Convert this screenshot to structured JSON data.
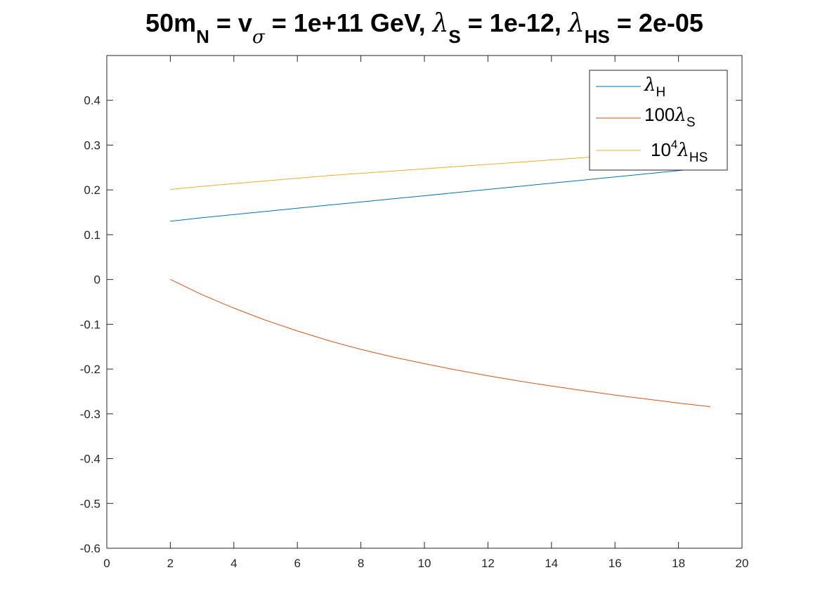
{
  "chart_data": {
    "type": "line",
    "title": {
      "p1": "50m",
      "p1_sub": "N",
      "p2": " = v",
      "p2_sub": "σ",
      "p3": " = 1e+11 GeV, ",
      "p4_greek": "λ",
      "p4_sub": "S",
      "p5": " = 1e-12, ",
      "p6_greek": "λ",
      "p6_sub": "HS",
      "p7": " = 2e-05"
    },
    "xlim": [
      0,
      20
    ],
    "ylim": [
      -0.6,
      0.5
    ],
    "xticks": [
      0,
      2,
      4,
      6,
      8,
      10,
      12,
      14,
      16,
      18,
      20
    ],
    "yticks": [
      -0.6,
      -0.5,
      -0.4,
      -0.3,
      -0.2,
      -0.1,
      0,
      0.1,
      0.2,
      0.3,
      0.4
    ],
    "xtick_labels": [
      "0",
      "2",
      "4",
      "6",
      "8",
      "10",
      "12",
      "14",
      "16",
      "18",
      "20"
    ],
    "ytick_labels": [
      "-0.6",
      "-0.5",
      "-0.4",
      "-0.3",
      "-0.2",
      "-0.1",
      "0",
      "0.1",
      "0.2",
      "0.3",
      "0.4"
    ],
    "grid": false,
    "legend_position": "top-right",
    "series": [
      {
        "legend": {
          "prefix": "",
          "greek": "λ",
          "sub": "H",
          "sup": ""
        },
        "color": "#0072bd",
        "x": [
          2,
          3,
          4,
          5,
          6,
          7,
          8,
          9,
          10,
          11,
          12,
          13,
          14,
          15,
          16,
          17,
          18,
          19
        ],
        "y": [
          0.13,
          0.138,
          0.145,
          0.152,
          0.159,
          0.166,
          0.173,
          0.18,
          0.187,
          0.194,
          0.201,
          0.208,
          0.215,
          0.222,
          0.229,
          0.236,
          0.243,
          0.25
        ]
      },
      {
        "legend": {
          "prefix": "100",
          "greek": "λ",
          "sub": "S",
          "sup": ""
        },
        "color": "#d95319",
        "x": [
          2,
          3,
          4,
          5,
          6,
          7,
          8,
          9,
          10,
          11,
          12,
          13,
          14,
          15,
          16,
          17,
          18,
          19
        ],
        "y": [
          0.0,
          -0.034,
          -0.064,
          -0.091,
          -0.115,
          -0.137,
          -0.156,
          -0.173,
          -0.188,
          -0.202,
          -0.215,
          -0.227,
          -0.238,
          -0.248,
          -0.258,
          -0.267,
          -0.276,
          -0.284
        ]
      },
      {
        "legend": {
          "prefix": "10",
          "greek": "λ",
          "sub": "HS",
          "sup": "4"
        },
        "color": "#edb120",
        "x": [
          2,
          3,
          4,
          5,
          6,
          7,
          8,
          9,
          10,
          11,
          12,
          13,
          14,
          15,
          16,
          17,
          18,
          19
        ],
        "y": [
          0.201,
          0.208,
          0.214,
          0.22,
          0.226,
          0.232,
          0.237,
          0.242,
          0.247,
          0.252,
          0.257,
          0.262,
          0.267,
          0.272,
          0.277,
          0.282,
          0.287,
          0.291
        ]
      }
    ]
  }
}
